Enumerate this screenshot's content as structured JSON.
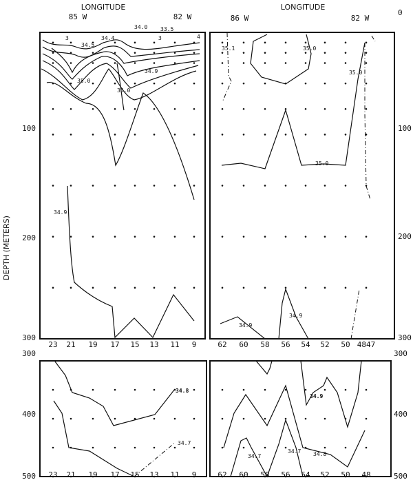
{
  "chart_data": {
    "type": "contour",
    "variable": "salinity",
    "ylabel": "DEPTH (METERS)",
    "panels": [
      {
        "id": "top-left",
        "title": "LONGITUDE",
        "top_labels": [
          "85 W",
          "82 W"
        ],
        "x_ticks": [
          "23",
          "21",
          "19",
          "17",
          "15",
          "13",
          "11",
          "9"
        ],
        "y_ticks": [
          "100",
          "200",
          "300"
        ],
        "ylim": [
          0,
          300
        ],
        "contour_labels": [
          "3",
          "34.5",
          "34.4",
          "34.0",
          "33.5",
          "3",
          "4",
          "34.9",
          "35.0",
          "35.0",
          "34.9"
        ]
      },
      {
        "id": "top-right",
        "title": "LONGITUDE",
        "top_labels": [
          "86 W",
          "82 W"
        ],
        "x_ticks": [
          "62",
          "60",
          "58",
          "56",
          "54",
          "52",
          "50",
          "4847"
        ],
        "y_ticks": [
          "0",
          "100",
          "200",
          "300"
        ],
        "ylim": [
          0,
          300
        ],
        "contour_labels": [
          "35.1",
          "35.0",
          "35.0",
          "35.0",
          "34.9",
          "34.9"
        ]
      },
      {
        "id": "bottom-left",
        "x_ticks": [
          "23",
          "21",
          "19",
          "17",
          "15",
          "13",
          "11",
          "9"
        ],
        "y_ticks": [
          "300",
          "400",
          "500"
        ],
        "ylim": [
          300,
          500
        ],
        "contour_labels": [
          "34.8",
          "34.7"
        ]
      },
      {
        "id": "bottom-right",
        "x_ticks": [
          "62",
          "60",
          "58",
          "56",
          "54",
          "52",
          "50",
          "48"
        ],
        "y_ticks": [
          "300",
          "400",
          "500"
        ],
        "ylim": [
          300,
          500
        ],
        "contour_labels": [
          "34.9",
          "34.7",
          "34.7",
          "34.8"
        ]
      }
    ]
  }
}
